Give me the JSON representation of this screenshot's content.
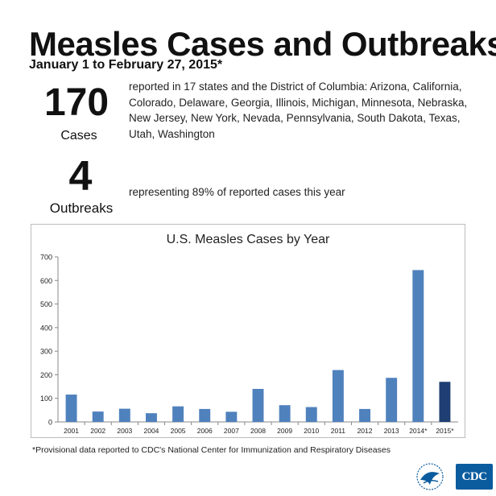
{
  "header": {
    "title": "Measles Cases and Outbreaks",
    "subtitle": "January 1 to February 27, 2015*"
  },
  "cases": {
    "number": "170",
    "label": "Cases",
    "description": "reported in 17 states and the District of Columbia: Arizona, California, Colorado, Delaware, Georgia, Illinois, Michigan, Minnesota, Nebraska, New Jersey, New York, Nevada, Pennsylvania, South Dakota, Texas, Utah, Washington"
  },
  "outbreaks": {
    "number": "4",
    "label": "Outbreaks",
    "description": "representing 89% of reported cases this year"
  },
  "footnote": "*Provisional data reported to CDC's National Center for Immunization and Respiratory Diseases",
  "logos": {
    "hhs": "hhs-eagle-icon",
    "cdc": "CDC"
  },
  "colors": {
    "bar": "#4f81bd",
    "bar_highlight": "#1f3f73",
    "cdc_blue": "#0a5c9e"
  },
  "chart_data": {
    "type": "bar",
    "title": "U.S. Measles Cases by Year",
    "xlabel": "",
    "ylabel": "",
    "categories": [
      "2001",
      "2002",
      "2003",
      "2004",
      "2005",
      "2006",
      "2007",
      "2008",
      "2009",
      "2010",
      "2011",
      "2012",
      "2013",
      "2014*",
      "2015*"
    ],
    "values": [
      116,
      44,
      56,
      37,
      66,
      55,
      43,
      140,
      71,
      63,
      220,
      55,
      187,
      644,
      170
    ],
    "highlight_index": 14,
    "ylim": [
      0,
      700
    ],
    "yticks": [
      0,
      100,
      200,
      300,
      400,
      500,
      600,
      700
    ],
    "grid": false,
    "legend": "none"
  }
}
